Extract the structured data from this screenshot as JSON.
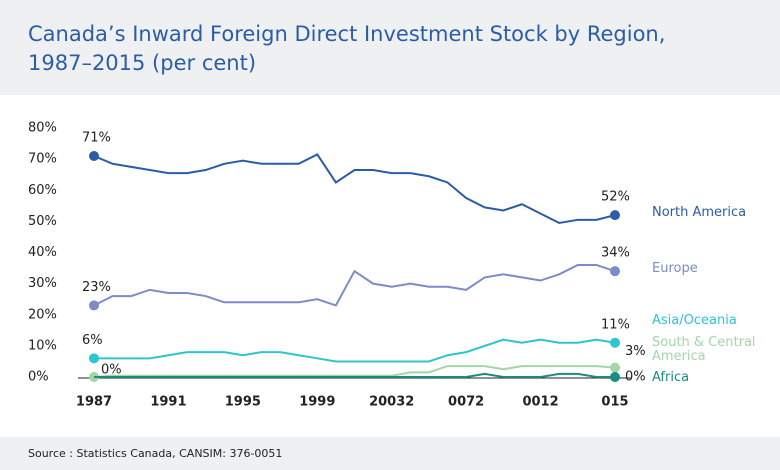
{
  "chart_data": {
    "type": "line",
    "title": "Canada’s Inward Foreign Direct Investment Stock by Region, 1987–2015 (per cent)",
    "source": "Source : Statistics Canada, CANSIM: 376-0051",
    "x": [
      1987,
      1988,
      1989,
      1990,
      1991,
      1992,
      1993,
      1994,
      1995,
      1996,
      1997,
      1998,
      1999,
      2000,
      2001,
      2002,
      2003,
      2004,
      2005,
      2006,
      2007,
      2008,
      2009,
      2010,
      2011,
      2012,
      2013,
      2014,
      2015
    ],
    "xlim": [
      1987,
      2015
    ],
    "xticks": [
      1987,
      1991,
      1995,
      1999,
      {
        "value": 2003,
        "label": "20032"
      },
      {
        "value": 2007,
        "label": "0072"
      },
      {
        "value": 2011,
        "label": "0012"
      },
      {
        "value": 2015,
        "label": "015"
      }
    ],
    "ylim": [
      0,
      80
    ],
    "yticks": [
      {
        "value": 0,
        "label": "0%"
      },
      {
        "value": 10,
        "label": "10%"
      },
      {
        "value": 20,
        "label": "20%"
      },
      {
        "value": 30,
        "label": "30%"
      },
      {
        "value": 40,
        "label": "40%"
      },
      {
        "value": 50,
        "label": "50%"
      },
      {
        "value": 60,
        "label": "60%"
      },
      {
        "value": 70,
        "label": "70%"
      },
      {
        "value": 80,
        "label": "80%"
      }
    ],
    "series": [
      {
        "name": "North America",
        "color": "#2b5ca8",
        "values": [
          71,
          68.5,
          67.5,
          66.5,
          65.5,
          65.5,
          66.5,
          68.5,
          69.5,
          68.5,
          68.5,
          68.5,
          71.5,
          62.5,
          66.5,
          66.5,
          65.5,
          65.5,
          64.5,
          62.5,
          57.5,
          54.5,
          53.5,
          55.5,
          52.5,
          49.5,
          50.5,
          50.5,
          52
        ],
        "value_labels": [
          "71%",
          null,
          null,
          null,
          null,
          null,
          null,
          null,
          null,
          null,
          null,
          null,
          null,
          null,
          null,
          null,
          null,
          null,
          null,
          null,
          null,
          null,
          null,
          null,
          null,
          null,
          null,
          null,
          "52%"
        ]
      },
      {
        "name": "Europe",
        "color": "#7b8cc7",
        "values": [
          23,
          26,
          26,
          28,
          27,
          27,
          26,
          24,
          24,
          24,
          24,
          24,
          25,
          23,
          34,
          30,
          29,
          30,
          29,
          29,
          28,
          32,
          33,
          32,
          31,
          33,
          36,
          36,
          34
        ],
        "value_labels": [
          "23%",
          null,
          null,
          null,
          null,
          null,
          null,
          null,
          null,
          null,
          null,
          null,
          null,
          null,
          null,
          null,
          null,
          null,
          null,
          null,
          null,
          null,
          null,
          null,
          null,
          null,
          null,
          null,
          "34%"
        ]
      },
      {
        "name": "Asia/Oceania",
        "color": "#2ec4d0",
        "values": [
          6,
          6,
          6,
          6,
          7,
          8,
          8,
          8,
          7,
          8,
          8,
          7,
          6,
          5,
          5,
          5,
          5,
          5,
          5,
          7,
          8,
          10,
          12,
          11,
          12,
          11,
          11,
          12,
          11
        ],
        "value_labels": [
          "6%",
          null,
          null,
          null,
          null,
          null,
          null,
          null,
          null,
          null,
          null,
          null,
          null,
          null,
          null,
          null,
          null,
          null,
          null,
          null,
          null,
          null,
          null,
          null,
          null,
          null,
          null,
          null,
          "11%"
        ]
      },
      {
        "name": "South & Central America",
        "color": "#a3d6a6",
        "values": [
          0,
          0.4,
          0.4,
          0.4,
          0.4,
          0.4,
          0.4,
          0.4,
          0.4,
          0.4,
          0.4,
          0.4,
          0.4,
          0.4,
          0.4,
          0.4,
          0.4,
          1.5,
          1.5,
          3.5,
          3.5,
          3.5,
          2.5,
          3.5,
          3.5,
          3.5,
          3.5,
          3.5,
          3
        ],
        "value_labels": [
          "0%",
          null,
          null,
          null,
          null,
          null,
          null,
          null,
          null,
          null,
          null,
          null,
          null,
          null,
          null,
          null,
          null,
          null,
          null,
          null,
          null,
          null,
          null,
          null,
          null,
          null,
          null,
          null,
          "3%"
        ]
      },
      {
        "name": "Africa",
        "color": "#1a8c80",
        "values": [
          0,
          0,
          0,
          0,
          0,
          0,
          0,
          0,
          0,
          0,
          0,
          0,
          0,
          0,
          0,
          0,
          0,
          0,
          0,
          0,
          0,
          1,
          0,
          0,
          0,
          1,
          1,
          0,
          0
        ],
        "value_labels": [
          null,
          null,
          null,
          null,
          null,
          null,
          null,
          null,
          null,
          null,
          null,
          null,
          null,
          null,
          null,
          null,
          null,
          null,
          null,
          null,
          null,
          null,
          null,
          null,
          null,
          null,
          null,
          null,
          "0%"
        ]
      }
    ]
  }
}
